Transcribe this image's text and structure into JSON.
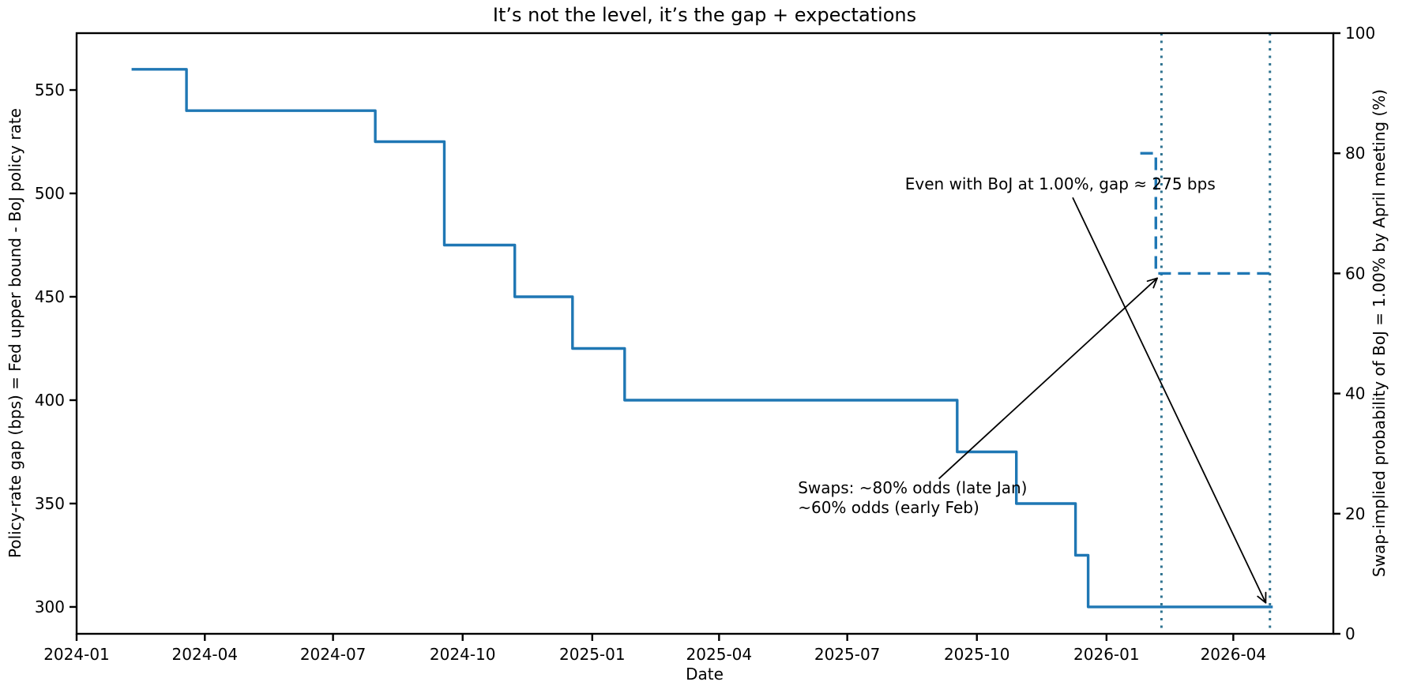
{
  "figure": {
    "title": "It’s not the level, it’s the gap + expectations",
    "xlabel": "Date",
    "ylabel_left": "Policy-rate gap (bps) = Fed upper bound - BoJ policy rate",
    "ylabel_right": "Swap-implied probability of BoJ = 1.00% by April meeting (%)"
  },
  "colors": {
    "gap_line": "#1f77b4",
    "prob_line": "#1f77b4",
    "meeting_vline": "#2f7390",
    "axis": "#000000",
    "text": "#000000",
    "arrow": "#000000"
  },
  "chart_data": {
    "type": "line",
    "title": "It’s not the level, it’s the gap + expectations",
    "xlabel": "Date",
    "ylabel_left": "Policy-rate gap (bps) = Fed upper bound - BoJ policy rate",
    "ylabel_right": "Swap-implied probability of BoJ = 1.00% by April meeting (%)",
    "grid": false,
    "legend": false,
    "x_lim": [
      "2024-01-01",
      "2026-06-11"
    ],
    "x_ticks": [
      {
        "date": "2024-01-01",
        "label": "2024-01"
      },
      {
        "date": "2024-04-01",
        "label": "2024-04"
      },
      {
        "date": "2024-07-01",
        "label": "2024-07"
      },
      {
        "date": "2024-10-01",
        "label": "2024-10"
      },
      {
        "date": "2025-01-01",
        "label": "2025-01"
      },
      {
        "date": "2025-04-01",
        "label": "2025-04"
      },
      {
        "date": "2025-07-01",
        "label": "2025-07"
      },
      {
        "date": "2025-10-01",
        "label": "2025-10"
      },
      {
        "date": "2026-01-01",
        "label": "2026-01"
      },
      {
        "date": "2026-04-01",
        "label": "2026-04"
      }
    ],
    "y_left": {
      "lim": [
        287,
        577.5
      ],
      "ticks": [
        300,
        350,
        400,
        450,
        500,
        550
      ]
    },
    "y_right": {
      "lim": [
        0,
        100
      ],
      "ticks": [
        0,
        20,
        40,
        60,
        80,
        100
      ]
    },
    "series": [
      {
        "name": "policy-rate-gap-bps",
        "axis": "left",
        "style": "solid",
        "color": "#1f77b4",
        "step": "post",
        "points": [
          [
            "2024-02-09",
            560
          ],
          [
            "2024-03-19",
            540
          ],
          [
            "2024-07-31",
            525
          ],
          [
            "2024-09-18",
            475
          ],
          [
            "2024-11-07",
            450
          ],
          [
            "2024-12-18",
            425
          ],
          [
            "2025-01-24",
            400
          ],
          [
            "2025-09-17",
            375
          ],
          [
            "2025-10-29",
            350
          ],
          [
            "2025-12-10",
            325
          ],
          [
            "2025-12-19",
            300
          ],
          [
            "2026-04-29",
            300
          ]
        ]
      },
      {
        "name": "swap-implied-probability-pct",
        "axis": "right",
        "style": "dashed",
        "color": "#1f77b4",
        "step": "post",
        "points": [
          [
            "2026-01-25",
            80
          ],
          [
            "2026-02-05",
            60
          ],
          [
            "2026-04-29",
            60
          ]
        ]
      }
    ],
    "vlines": [
      {
        "x": "2026-02-09",
        "style": "dotted",
        "color": "#2f7390",
        "name": "meeting-vline-feb"
      },
      {
        "x": "2026-04-27",
        "style": "dotted",
        "color": "#2f7390",
        "name": "meeting-vline-april"
      }
    ],
    "annotations": [
      {
        "name": "gap-annotation",
        "lines": [
          "Even with BoJ at 1.00%, gap ≈ 275 bps"
        ],
        "text_at": [
          "2025-08-11",
          502
        ],
        "arrow_from": [
          "2025-12-08",
          498
        ],
        "arrow_to": [
          "2026-04-24",
          302
        ]
      },
      {
        "name": "swaps-annotation",
        "lines": [
          "Swaps: ~80% odds (late Jan)",
          "~60% odds (early Feb)"
        ],
        "text_at": [
          "2025-05-27",
          355
        ],
        "arrow_from": [
          "2025-09-04",
          362
        ],
        "arrow_to": [
          "2026-02-06",
          459
        ]
      }
    ]
  }
}
